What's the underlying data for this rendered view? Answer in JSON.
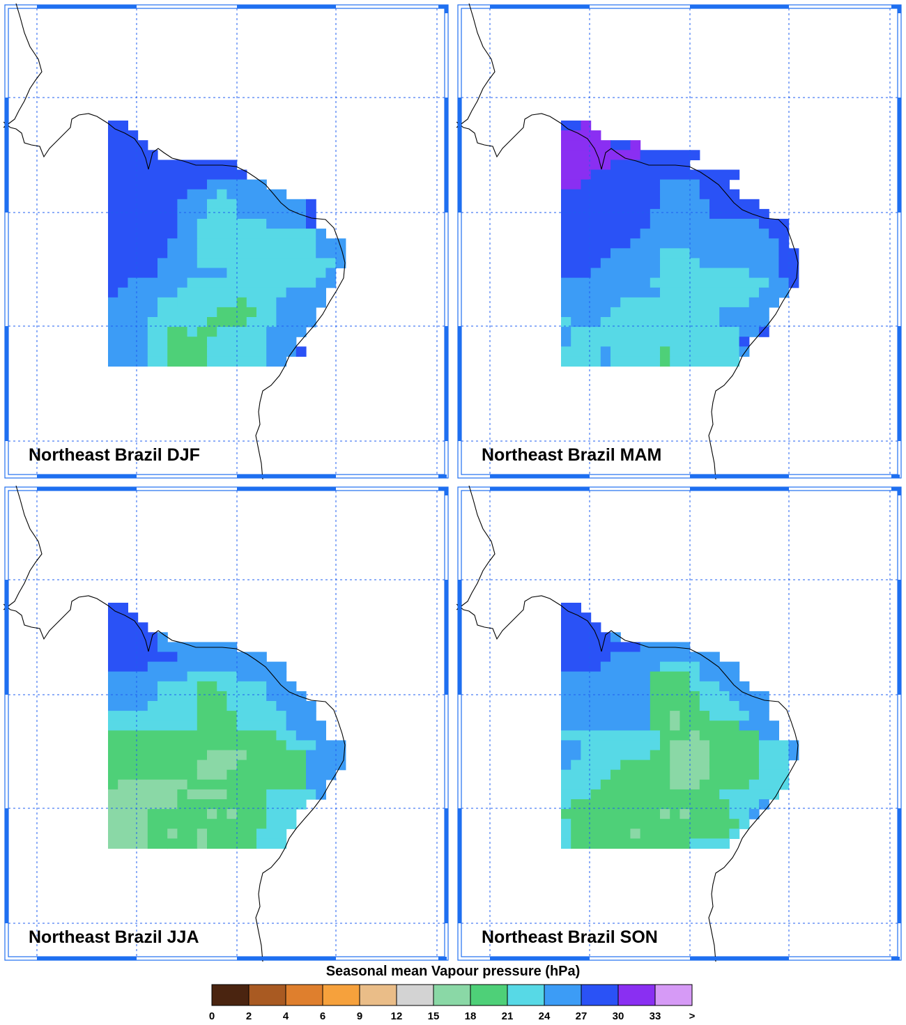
{
  "colorbar": {
    "title": "Seasonal mean Vapour pressure (hPa)",
    "levels": [
      "0",
      "2",
      "4",
      "6",
      "9",
      "12",
      "15",
      "18",
      "21",
      "24",
      "27",
      "30",
      "33",
      ">"
    ],
    "colors": [
      "#4a2410",
      "#a95a22",
      "#df7f2d",
      "#f6a13c",
      "#eabd88",
      "#d3d3d3",
      "#8ad8a6",
      "#4ed078",
      "#57d9e6",
      "#3c9cf6",
      "#2a52f6",
      "#8a2ff2",
      "#d69af6"
    ]
  },
  "colors": {
    "grid": "#1e5ef0",
    "frame_ticks": "#1e6ff0",
    "coastline": "#000000"
  },
  "panels": [
    {
      "title": "Northeast Brazil DJF"
    },
    {
      "title": "Northeast Brazil MAM"
    },
    {
      "title": "Northeast Brazil JJA"
    },
    {
      "title": "Northeast Brazil SON"
    }
  ]
}
